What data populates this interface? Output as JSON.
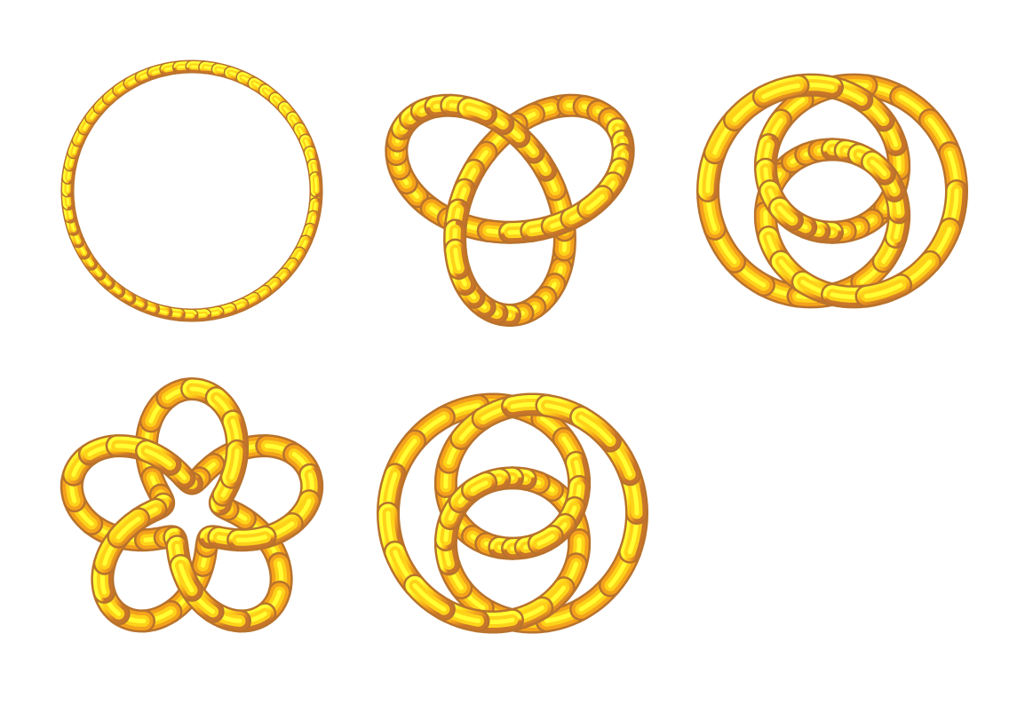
{
  "gallery": {
    "background": "#ffffff",
    "tube_colors": {
      "highlight": "#ffff33",
      "light": "#ffd21a",
      "mid": "#f4a11c",
      "shadow": "#c8752a",
      "outline": "#b8722c"
    },
    "knots": [
      {
        "name": "unknot",
        "crossings": 0,
        "rotation": 0,
        "flip": false,
        "tube": "thin"
      },
      {
        "name": "trefoil",
        "crossings": 3,
        "rotation": 180,
        "flip": false,
        "tube": "thick"
      },
      {
        "name": "figure-eight",
        "crossings": 4,
        "rotation": 0,
        "flip": false,
        "tube": "thick"
      },
      {
        "name": "cinquefoil",
        "crossings": 5,
        "rotation": 0,
        "flip": false,
        "tube": "thick"
      },
      {
        "name": "three-twist",
        "crossings": 5,
        "rotation": 0,
        "flip": true,
        "tube": "thick"
      }
    ]
  }
}
